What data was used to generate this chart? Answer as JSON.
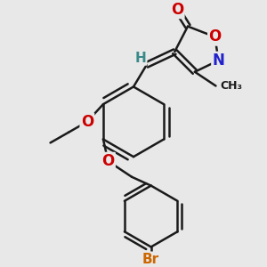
{
  "bg_color": "#e8e8e8",
  "bond_color": "#1a1a1a",
  "bond_width": 1.8,
  "atom_colors": {
    "O": "#cc0000",
    "N": "#2222cc",
    "Br": "#cc6600",
    "H": "#3a8a8a"
  },
  "font_size_atom": 11,
  "font_size_methyl": 9
}
